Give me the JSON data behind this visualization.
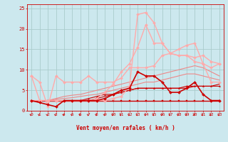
{
  "bg_color": "#cce8ee",
  "grid_color": "#aacccc",
  "xlabel": "Vent moyen/en rafales ( km/h )",
  "font_color": "#cc0000",
  "xlim": [
    -0.5,
    23.5
  ],
  "ylim": [
    0,
    26
  ],
  "yticks": [
    0,
    5,
    10,
    15,
    20,
    25
  ],
  "xticks": [
    0,
    1,
    2,
    3,
    4,
    5,
    6,
    7,
    8,
    9,
    10,
    11,
    12,
    13,
    14,
    15,
    16,
    17,
    18,
    19,
    20,
    21,
    22,
    23
  ],
  "x": [
    0,
    1,
    2,
    3,
    4,
    5,
    6,
    7,
    8,
    9,
    10,
    11,
    12,
    13,
    14,
    15,
    16,
    17,
    18,
    19,
    20,
    21,
    22,
    23
  ],
  "lines": [
    {
      "y": [
        2.5,
        2.5,
        2.5,
        2.5,
        2.5,
        2.5,
        2.5,
        2.5,
        2.5,
        2.5,
        2.5,
        2.5,
        2.5,
        2.5,
        2.5,
        2.5,
        2.5,
        2.5,
        2.5,
        2.5,
        2.5,
        2.5,
        2.5,
        2.5
      ],
      "color": "#cc0000",
      "lw": 1.0,
      "marker": "s",
      "ms": 1.5,
      "zorder": 3
    },
    {
      "y": [
        2.5,
        2.5,
        2.5,
        2.5,
        2.5,
        2.5,
        2.5,
        2.5,
        3.0,
        3.5,
        4.0,
        4.5,
        5.0,
        5.5,
        5.5,
        5.5,
        5.5,
        5.5,
        5.5,
        5.5,
        6.0,
        6.0,
        6.0,
        6.5
      ],
      "color": "#cc0000",
      "lw": 0.8,
      "marker": null,
      "ms": 0,
      "zorder": 2
    },
    {
      "y": [
        2.5,
        2.5,
        2.5,
        2.5,
        2.5,
        2.5,
        2.5,
        3.0,
        3.5,
        4.0,
        4.0,
        4.5,
        5.0,
        5.5,
        5.5,
        5.5,
        5.5,
        5.5,
        5.5,
        6.0,
        6.0,
        6.0,
        6.0,
        6.0
      ],
      "color": "#cc0000",
      "lw": 0.8,
      "marker": "^",
      "ms": 1.5,
      "zorder": 3
    },
    {
      "y": [
        2.5,
        2.0,
        1.5,
        1.0,
        2.5,
        2.5,
        2.5,
        2.5,
        2.5,
        3.0,
        4.0,
        5.0,
        5.5,
        9.5,
        8.5,
        8.5,
        7.0,
        4.5,
        4.5,
        5.5,
        7.0,
        4.0,
        2.5,
        2.5
      ],
      "color": "#cc0000",
      "lw": 1.2,
      "marker": "D",
      "ms": 2.0,
      "zorder": 4
    },
    {
      "y": [
        2.5,
        2.5,
        2.5,
        2.8,
        3.0,
        3.2,
        3.5,
        3.8,
        4.0,
        4.5,
        5.0,
        5.5,
        6.0,
        6.5,
        7.0,
        7.0,
        7.5,
        8.0,
        8.5,
        9.0,
        9.0,
        8.5,
        8.0,
        7.5
      ],
      "color": "#ee8888",
      "lw": 0.8,
      "marker": null,
      "ms": 0,
      "zorder": 2
    },
    {
      "y": [
        2.5,
        2.5,
        2.5,
        3.0,
        3.5,
        3.8,
        4.0,
        4.5,
        5.0,
        5.5,
        6.0,
        6.5,
        7.0,
        7.5,
        8.0,
        8.5,
        9.0,
        9.5,
        10.0,
        10.5,
        11.0,
        10.5,
        9.5,
        8.5
      ],
      "color": "#ee8888",
      "lw": 0.8,
      "marker": null,
      "ms": 0,
      "zorder": 2
    },
    {
      "y": [
        8.5,
        7.0,
        1.0,
        8.5,
        7.0,
        7.0,
        7.0,
        8.5,
        7.0,
        7.0,
        7.0,
        8.0,
        10.5,
        10.5,
        10.5,
        11.0,
        13.5,
        14.0,
        15.0,
        16.0,
        16.5,
        11.5,
        7.0,
        7.0
      ],
      "color": "#ffaaaa",
      "lw": 1.0,
      "marker": "D",
      "ms": 2.0,
      "zorder": 3
    },
    {
      "y": [
        2.5,
        2.5,
        2.5,
        2.5,
        2.5,
        2.5,
        2.5,
        2.5,
        2.5,
        2.5,
        3.0,
        3.5,
        6.0,
        23.5,
        24.0,
        21.5,
        16.5,
        14.0,
        13.5,
        13.5,
        12.0,
        11.5,
        10.5,
        11.5
      ],
      "color": "#ffaaaa",
      "lw": 1.0,
      "marker": "D",
      "ms": 2.0,
      "zorder": 3
    },
    {
      "y": [
        8.5,
        2.5,
        2.5,
        2.5,
        2.5,
        2.5,
        2.5,
        2.5,
        3.0,
        4.5,
        6.5,
        9.5,
        11.5,
        15.5,
        21.0,
        16.5,
        16.5,
        14.0,
        13.5,
        13.5,
        13.0,
        13.5,
        12.0,
        11.5
      ],
      "color": "#ffaaaa",
      "lw": 1.0,
      "marker": "D",
      "ms": 2.0,
      "zorder": 3
    }
  ]
}
